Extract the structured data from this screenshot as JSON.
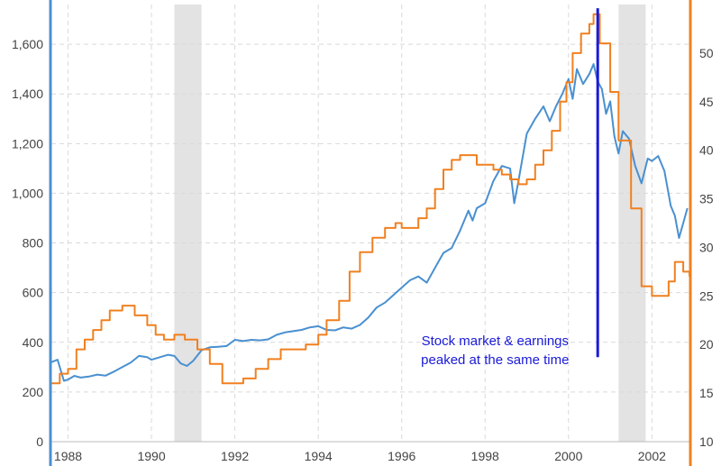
{
  "chart_data": {
    "type": "line",
    "title": "",
    "xlabel": "",
    "ylabel_left": "",
    "ylabel_right": "",
    "xlim": [
      1987.6,
      2002.9
    ],
    "ylim_left": [
      0,
      1760
    ],
    "ylim_right": [
      10,
      55
    ],
    "x_ticks": [
      "1988",
      "1990",
      "1992",
      "1994",
      "1996",
      "1998",
      "2000",
      "2002"
    ],
    "y_left_ticks": [
      "0",
      "200",
      "400",
      "600",
      "800",
      "1,000",
      "1,200",
      "1,400",
      "1,600"
    ],
    "y_right_ticks": [
      "10",
      "15",
      "20",
      "25",
      "30",
      "35",
      "40",
      "45",
      "50"
    ],
    "grid": true,
    "colors": {
      "sp500": "#4a90d0",
      "earnings": "#f08020",
      "recession": "#e3e3e3",
      "marker": "#1a1ad8"
    },
    "recessions": [
      [
        1990.55,
        1991.2
      ],
      [
        2001.2,
        2001.85
      ]
    ],
    "marker_x": 2000.7,
    "marker_top_y": 1745,
    "marker_bottom_y": 340,
    "annotation": {
      "line1": "Stock market & earnings",
      "line2": "peaked at the same time",
      "x": 2000.4,
      "y": 400
    },
    "series": [
      {
        "axis": "left",
        "color": "#4a90d0",
        "points": [
          [
            1987.6,
            320
          ],
          [
            1987.75,
            330
          ],
          [
            1987.9,
            245
          ],
          [
            1988.0,
            250
          ],
          [
            1988.15,
            265
          ],
          [
            1988.3,
            258
          ],
          [
            1988.5,
            262
          ],
          [
            1988.7,
            270
          ],
          [
            1988.9,
            266
          ],
          [
            1989.1,
            282
          ],
          [
            1989.3,
            300
          ],
          [
            1989.5,
            318
          ],
          [
            1989.7,
            345
          ],
          [
            1989.9,
            340
          ],
          [
            1990.0,
            330
          ],
          [
            1990.2,
            340
          ],
          [
            1990.4,
            350
          ],
          [
            1990.55,
            345
          ],
          [
            1990.7,
            315
          ],
          [
            1990.85,
            305
          ],
          [
            1991.0,
            325
          ],
          [
            1991.2,
            368
          ],
          [
            1991.4,
            380
          ],
          [
            1991.6,
            382
          ],
          [
            1991.8,
            385
          ],
          [
            1992.0,
            410
          ],
          [
            1992.2,
            405
          ],
          [
            1992.4,
            410
          ],
          [
            1992.6,
            408
          ],
          [
            1992.8,
            412
          ],
          [
            1993.0,
            430
          ],
          [
            1993.2,
            440
          ],
          [
            1993.4,
            445
          ],
          [
            1993.6,
            450
          ],
          [
            1993.8,
            460
          ],
          [
            1994.0,
            465
          ],
          [
            1994.2,
            450
          ],
          [
            1994.4,
            448
          ],
          [
            1994.6,
            460
          ],
          [
            1994.8,
            455
          ],
          [
            1995.0,
            470
          ],
          [
            1995.2,
            500
          ],
          [
            1995.4,
            540
          ],
          [
            1995.6,
            560
          ],
          [
            1995.8,
            590
          ],
          [
            1996.0,
            620
          ],
          [
            1996.2,
            650
          ],
          [
            1996.4,
            665
          ],
          [
            1996.6,
            640
          ],
          [
            1996.8,
            700
          ],
          [
            1997.0,
            760
          ],
          [
            1997.2,
            780
          ],
          [
            1997.4,
            850
          ],
          [
            1997.6,
            930
          ],
          [
            1997.7,
            890
          ],
          [
            1997.8,
            940
          ],
          [
            1998.0,
            960
          ],
          [
            1998.2,
            1050
          ],
          [
            1998.4,
            1110
          ],
          [
            1998.6,
            1100
          ],
          [
            1998.7,
            960
          ],
          [
            1998.8,
            1050
          ],
          [
            1999.0,
            1240
          ],
          [
            1999.2,
            1300
          ],
          [
            1999.4,
            1350
          ],
          [
            1999.55,
            1290
          ],
          [
            1999.7,
            1350
          ],
          [
            1999.85,
            1400
          ],
          [
            2000.0,
            1460
          ],
          [
            2000.1,
            1380
          ],
          [
            2000.2,
            1500
          ],
          [
            2000.35,
            1440
          ],
          [
            2000.5,
            1480
          ],
          [
            2000.6,
            1520
          ],
          [
            2000.7,
            1450
          ],
          [
            2000.8,
            1420
          ],
          [
            2000.9,
            1320
          ],
          [
            2001.0,
            1370
          ],
          [
            2001.1,
            1230
          ],
          [
            2001.2,
            1160
          ],
          [
            2001.3,
            1250
          ],
          [
            2001.45,
            1220
          ],
          [
            2001.6,
            1110
          ],
          [
            2001.75,
            1040
          ],
          [
            2001.9,
            1140
          ],
          [
            2002.0,
            1130
          ],
          [
            2002.15,
            1150
          ],
          [
            2002.3,
            1090
          ],
          [
            2002.45,
            950
          ],
          [
            2002.55,
            910
          ],
          [
            2002.65,
            820
          ],
          [
            2002.75,
            880
          ],
          [
            2002.85,
            940
          ]
        ]
      },
      {
        "axis": "right",
        "color": "#f08020",
        "step": true,
        "points": [
          [
            1987.6,
            16.0
          ],
          [
            1987.8,
            17.0
          ],
          [
            1988.0,
            17.5
          ],
          [
            1988.2,
            19.5
          ],
          [
            1988.4,
            20.5
          ],
          [
            1988.6,
            21.5
          ],
          [
            1988.8,
            22.5
          ],
          [
            1989.0,
            23.5
          ],
          [
            1989.3,
            24.0
          ],
          [
            1989.6,
            23.0
          ],
          [
            1989.9,
            22.0
          ],
          [
            1990.1,
            21.0
          ],
          [
            1990.3,
            20.5
          ],
          [
            1990.55,
            21.0
          ],
          [
            1990.8,
            20.5
          ],
          [
            1991.1,
            19.5
          ],
          [
            1991.4,
            18.0
          ],
          [
            1991.7,
            16.0
          ],
          [
            1992.0,
            16.0
          ],
          [
            1992.2,
            16.5
          ],
          [
            1992.5,
            17.5
          ],
          [
            1992.8,
            18.5
          ],
          [
            1993.1,
            19.5
          ],
          [
            1993.4,
            19.5
          ],
          [
            1993.7,
            20.0
          ],
          [
            1994.0,
            21.0
          ],
          [
            1994.2,
            22.5
          ],
          [
            1994.5,
            24.5
          ],
          [
            1994.75,
            27.5
          ],
          [
            1995.0,
            29.5
          ],
          [
            1995.3,
            31.0
          ],
          [
            1995.6,
            32.0
          ],
          [
            1995.85,
            32.5
          ],
          [
            1996.0,
            32.0
          ],
          [
            1996.2,
            32.0
          ],
          [
            1996.4,
            33.0
          ],
          [
            1996.6,
            34.0
          ],
          [
            1996.8,
            36.0
          ],
          [
            1997.0,
            38.0
          ],
          [
            1997.2,
            39.0
          ],
          [
            1997.4,
            39.5
          ],
          [
            1997.6,
            39.5
          ],
          [
            1997.8,
            38.5
          ],
          [
            1998.0,
            38.5
          ],
          [
            1998.2,
            38.0
          ],
          [
            1998.4,
            37.5
          ],
          [
            1998.6,
            37.0
          ],
          [
            1998.8,
            36.5
          ],
          [
            1999.0,
            37.0
          ],
          [
            1999.2,
            38.5
          ],
          [
            1999.4,
            40.0
          ],
          [
            1999.6,
            42.0
          ],
          [
            1999.8,
            45.0
          ],
          [
            1999.95,
            47.0
          ],
          [
            2000.1,
            50.0
          ],
          [
            2000.3,
            52.0
          ],
          [
            2000.5,
            53.0
          ],
          [
            2000.6,
            54.0
          ],
          [
            2000.75,
            51.0
          ],
          [
            2001.0,
            46.0
          ],
          [
            2001.2,
            41.0
          ],
          [
            2001.5,
            34.0
          ],
          [
            2001.75,
            26.0
          ],
          [
            2002.0,
            25.0
          ],
          [
            2002.25,
            25.0
          ],
          [
            2002.4,
            26.5
          ],
          [
            2002.55,
            28.5
          ],
          [
            2002.75,
            27.5
          ],
          [
            2002.9,
            27.0
          ]
        ]
      }
    ]
  }
}
